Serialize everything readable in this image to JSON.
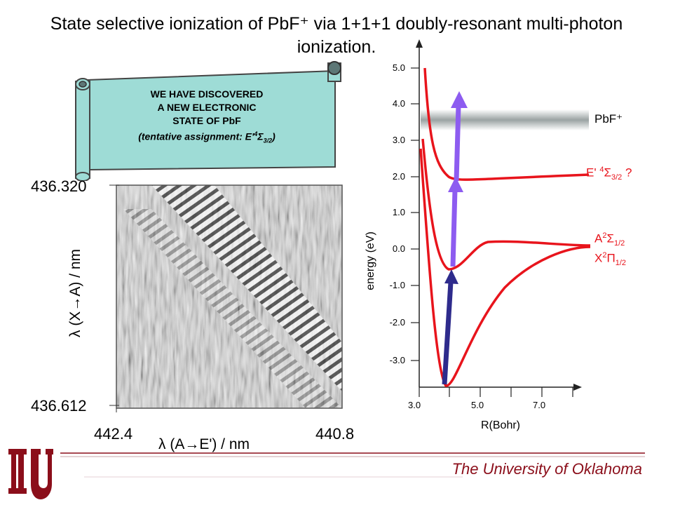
{
  "title": {
    "line1": "State selective ionization of PbF⁺ via 1+1+1 doubly-resonant multi-photon",
    "line2": "ionization."
  },
  "scroll": {
    "line1": "WE HAVE DISCOVERED",
    "line2": "A NEW ELECTRONIC",
    "line3": "STATE OF PbF",
    "line4_prefix": "(tentative assignment: E'",
    "line4_sup": "4",
    "line4_sigma": "Σ",
    "line4_sub": "3/2",
    "line4_suffix": ")"
  },
  "spectrum": {
    "y_top": "436.320",
    "y_bottom": "436.612",
    "x_left": "442.4",
    "x_right": "440.8",
    "y_axis_label": "λ (X→A) / nm",
    "x_axis_label": "λ (A→E') / nm"
  },
  "energy_plot": {
    "y_axis_label": "energy (eV)",
    "x_axis_label": "R(Bohr)",
    "y_ticks": [
      "5.0",
      "4.0",
      "3.0",
      "2.0",
      "1.0",
      "0.0",
      "-1.0",
      "-2.0",
      "-3.0"
    ],
    "x_ticks": [
      "3.0",
      "5.0",
      "7.0"
    ],
    "pbf_ion_label": "PbF⁺",
    "e_state": {
      "prefix": "E' ",
      "sup": "4",
      "sigma": "Σ",
      "sub": "3/2",
      "suffix": " ?"
    },
    "a_state": {
      "letter": "A",
      "sup": "2",
      "sigma": "Σ",
      "sub": "1/2"
    },
    "x_state": {
      "letter": "X",
      "sup": "2",
      "pi": "Π",
      "sub": "1/2"
    },
    "colors": {
      "curves": "#e8141c",
      "arrow_uv": "#2e2b8c",
      "arrow_vis": "#8d5cf0",
      "ion_band": "#9aa3a3"
    }
  },
  "footer": {
    "university": "The University of Oklahoma",
    "logo_text": "OU"
  }
}
